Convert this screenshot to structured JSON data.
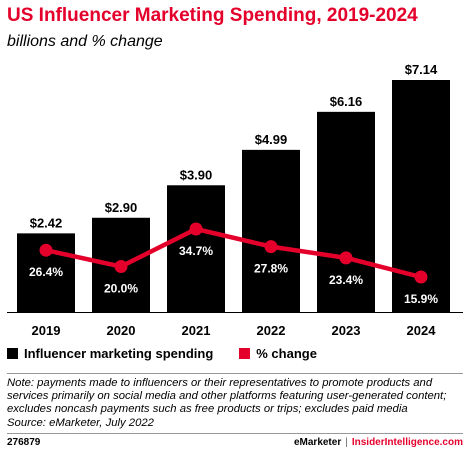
{
  "header": {
    "title": "US Influencer Marketing Spending, 2019-2024",
    "subtitle": "billions and % change"
  },
  "legend": {
    "items": [
      {
        "label": "Influencer marketing spending",
        "color": "#000000"
      },
      {
        "label": "% change",
        "color": "#e4002b"
      }
    ]
  },
  "note": "Note: payments made to influencers or their representatives to promote products and services primarily on social media and other platforms featuring user-generated content; excludes noncash payments such as free products or trips; excludes paid media\nSource: eMarketer, July 2022",
  "footer": {
    "id": "276879",
    "brand": "eMarketer",
    "separator": "|",
    "site": "InsiderIntelligence.com"
  },
  "chart_data": {
    "type": "bar",
    "title": "US Influencer Marketing Spending, 2019-2024",
    "subtitle": "billions and % change",
    "categories": [
      "2019",
      "2020",
      "2021",
      "2022",
      "2023",
      "2024"
    ],
    "series": [
      {
        "name": "Influencer marketing spending",
        "type": "bar",
        "color": "#000000",
        "values": [
          2.42,
          2.9,
          3.9,
          4.99,
          6.16,
          7.14
        ],
        "labels": [
          "$2.42",
          "$2.90",
          "$3.90",
          "$4.99",
          "$6.16",
          "$7.14"
        ]
      },
      {
        "name": "% change",
        "type": "line",
        "color": "#e4002b",
        "values": [
          26.4,
          20.0,
          34.7,
          27.8,
          23.4,
          15.9
        ],
        "labels": [
          "26.4%",
          "20.0%",
          "34.7%",
          "27.8%",
          "23.4%",
          "15.9%"
        ]
      }
    ],
    "bar_ylim": [
      0,
      7.14
    ],
    "line_ylim": [
      15.9,
      34.7
    ],
    "legend_position": "bottom-left",
    "grid": false
  }
}
